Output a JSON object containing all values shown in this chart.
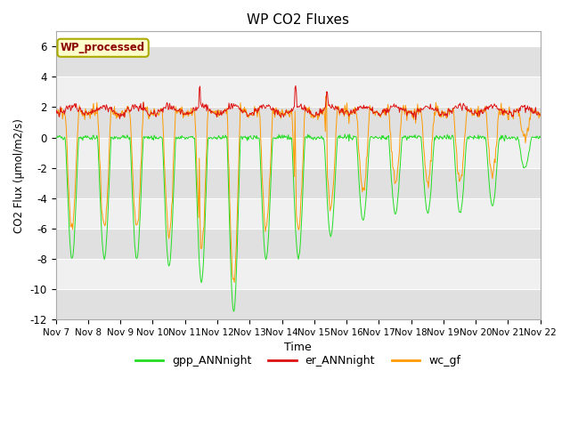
{
  "title": "WP CO2 Fluxes",
  "xlabel": "Time",
  "ylabel": "CO2 Flux (μmol/m2/s)",
  "ylim": [
    -12,
    7
  ],
  "yticks": [
    -12,
    -10,
    -8,
    -6,
    -4,
    -2,
    0,
    2,
    4,
    6
  ],
  "n_days": 15,
  "points_per_day": 48,
  "legend_labels": [
    "gpp_ANNnight",
    "er_ANNnight",
    "wc_gf"
  ],
  "annotation_text": "WP_processed",
  "annotation_color": "#8b0000",
  "annotation_bg": "#ffffcc",
  "annotation_edge": "#aaaa00",
  "xtick_labels": [
    "Nov 7",
    "Nov 8",
    "Nov 9",
    "Nov 10",
    "Nov 11",
    "Nov 12",
    "Nov 13",
    "Nov 14",
    "Nov 15",
    "Nov 16",
    "Nov 17",
    "Nov 18",
    "Nov 19",
    "Nov 20",
    "Nov 21",
    "Nov 22"
  ],
  "gpp_color": "#22dd22",
  "er_color": "#dd1111",
  "wc_color": "#ff9900",
  "band_light": "#f0f0f0",
  "band_dark": "#e0e0e0",
  "bg_color": "#ffffff"
}
